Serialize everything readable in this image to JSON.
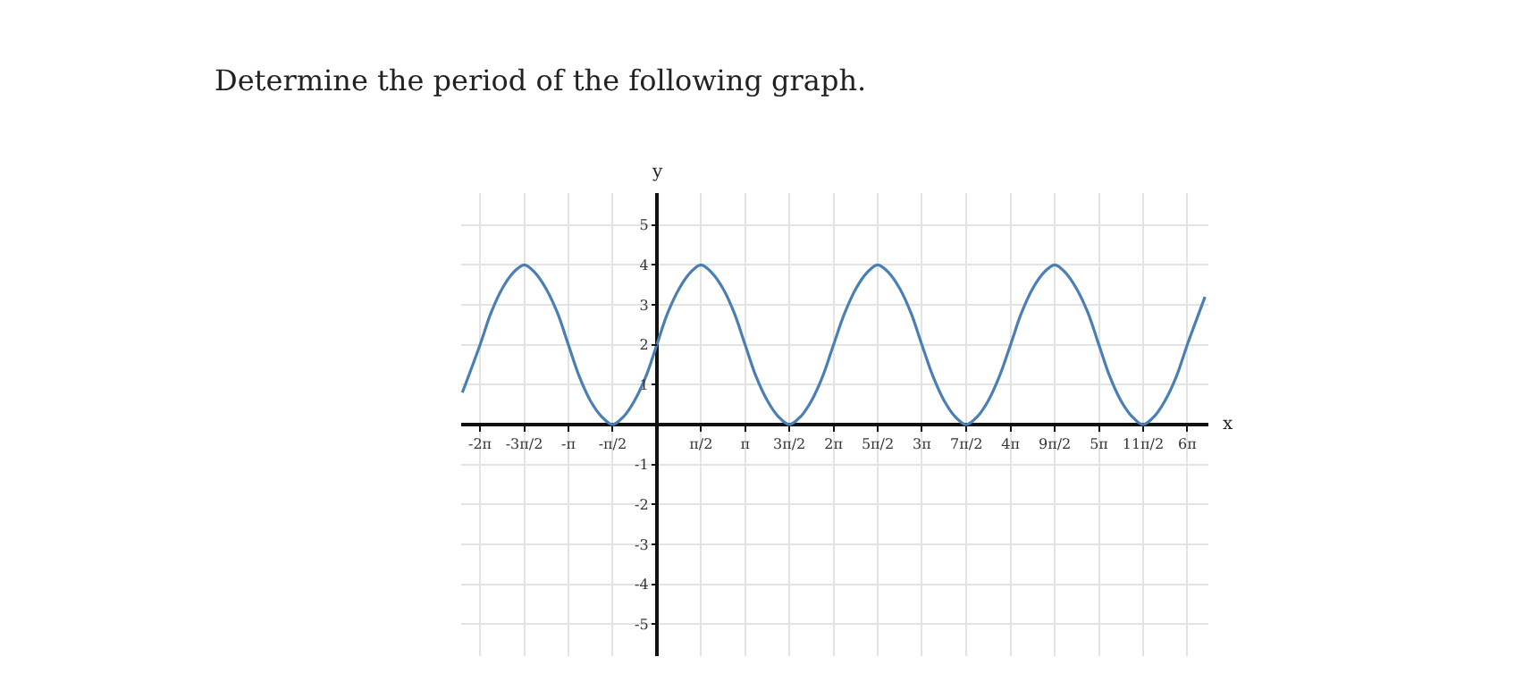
{
  "chart_data": {
    "type": "line",
    "title": "Determine the period of the following graph.",
    "xlabel": "x",
    "ylabel": "y",
    "x": [
      -6.91,
      -6.28,
      -5.89,
      -5.5,
      -5.11,
      -4.71,
      -4.32,
      -3.93,
      -3.53,
      -3.14,
      -2.75,
      -2.36,
      -1.96,
      -1.57,
      -1.18,
      -0.79,
      -0.39,
      0,
      0.39,
      0.79,
      1.18,
      1.57,
      1.96,
      2.36,
      2.75,
      3.14,
      3.53,
      3.93,
      4.32,
      4.71,
      5.11,
      5.5,
      5.89,
      6.28,
      6.68,
      7.07,
      7.46,
      7.85,
      8.25,
      8.64,
      9.03,
      9.42,
      9.82,
      10.21,
      10.6,
      11.0,
      11.39,
      11.78,
      12.17,
      12.57,
      12.96,
      13.35,
      13.74,
      14.14,
      14.53,
      14.92,
      15.32,
      15.71,
      16.1,
      16.49,
      16.89,
      17.28,
      17.67,
      18.06,
      18.46,
      18.85,
      19.48
    ],
    "series": [
      {
        "color": "#4a7fb5",
        "values": [
          0.8,
          2,
          2.8,
          3.4,
          3.8,
          4,
          3.8,
          3.4,
          2.8,
          2,
          1.2,
          0.6,
          0.2,
          0,
          0.2,
          0.6,
          1.2,
          2,
          2.8,
          3.4,
          3.8,
          4,
          3.8,
          3.4,
          2.8,
          2,
          1.2,
          0.6,
          0.2,
          0,
          0.2,
          0.6,
          1.2,
          2,
          2.8,
          3.4,
          3.8,
          4,
          3.8,
          3.4,
          2.8,
          2,
          1.2,
          0.6,
          0.2,
          0,
          0.2,
          0.6,
          1.2,
          2,
          2.8,
          3.4,
          3.8,
          4,
          3.8,
          3.4,
          2.8,
          2,
          1.2,
          0.6,
          0.2,
          0,
          0.2,
          0.6,
          1.2,
          2,
          3.2
        ]
      }
    ],
    "xlim": [
      -6.95,
      19.6
    ],
    "ylim": [
      -5.8,
      5.8
    ],
    "xticks": [
      {
        "value": -6.28,
        "label": "-2π"
      },
      {
        "value": -4.71,
        "label": "-3π/2"
      },
      {
        "value": -3.14,
        "label": "-π"
      },
      {
        "value": -1.57,
        "label": "-π/2"
      },
      {
        "value": 1.57,
        "label": "π/2"
      },
      {
        "value": 3.14,
        "label": "π"
      },
      {
        "value": 4.71,
        "label": "3π/2"
      },
      {
        "value": 6.28,
        "label": "2π"
      },
      {
        "value": 7.85,
        "label": "5π/2"
      },
      {
        "value": 9.42,
        "label": "3π"
      },
      {
        "value": 11.0,
        "label": "7π/2"
      },
      {
        "value": 12.57,
        "label": "4π"
      },
      {
        "value": 14.14,
        "label": "9π/2"
      },
      {
        "value": 15.71,
        "label": "5π"
      },
      {
        "value": 17.28,
        "label": "11π/2"
      },
      {
        "value": 18.85,
        "label": "6π"
      }
    ],
    "yticks": [
      -5,
      -4,
      -3,
      -2,
      -1,
      1,
      2,
      3,
      4,
      5
    ],
    "grid": true,
    "legend": false,
    "marker": "none",
    "line_style": "solid"
  }
}
